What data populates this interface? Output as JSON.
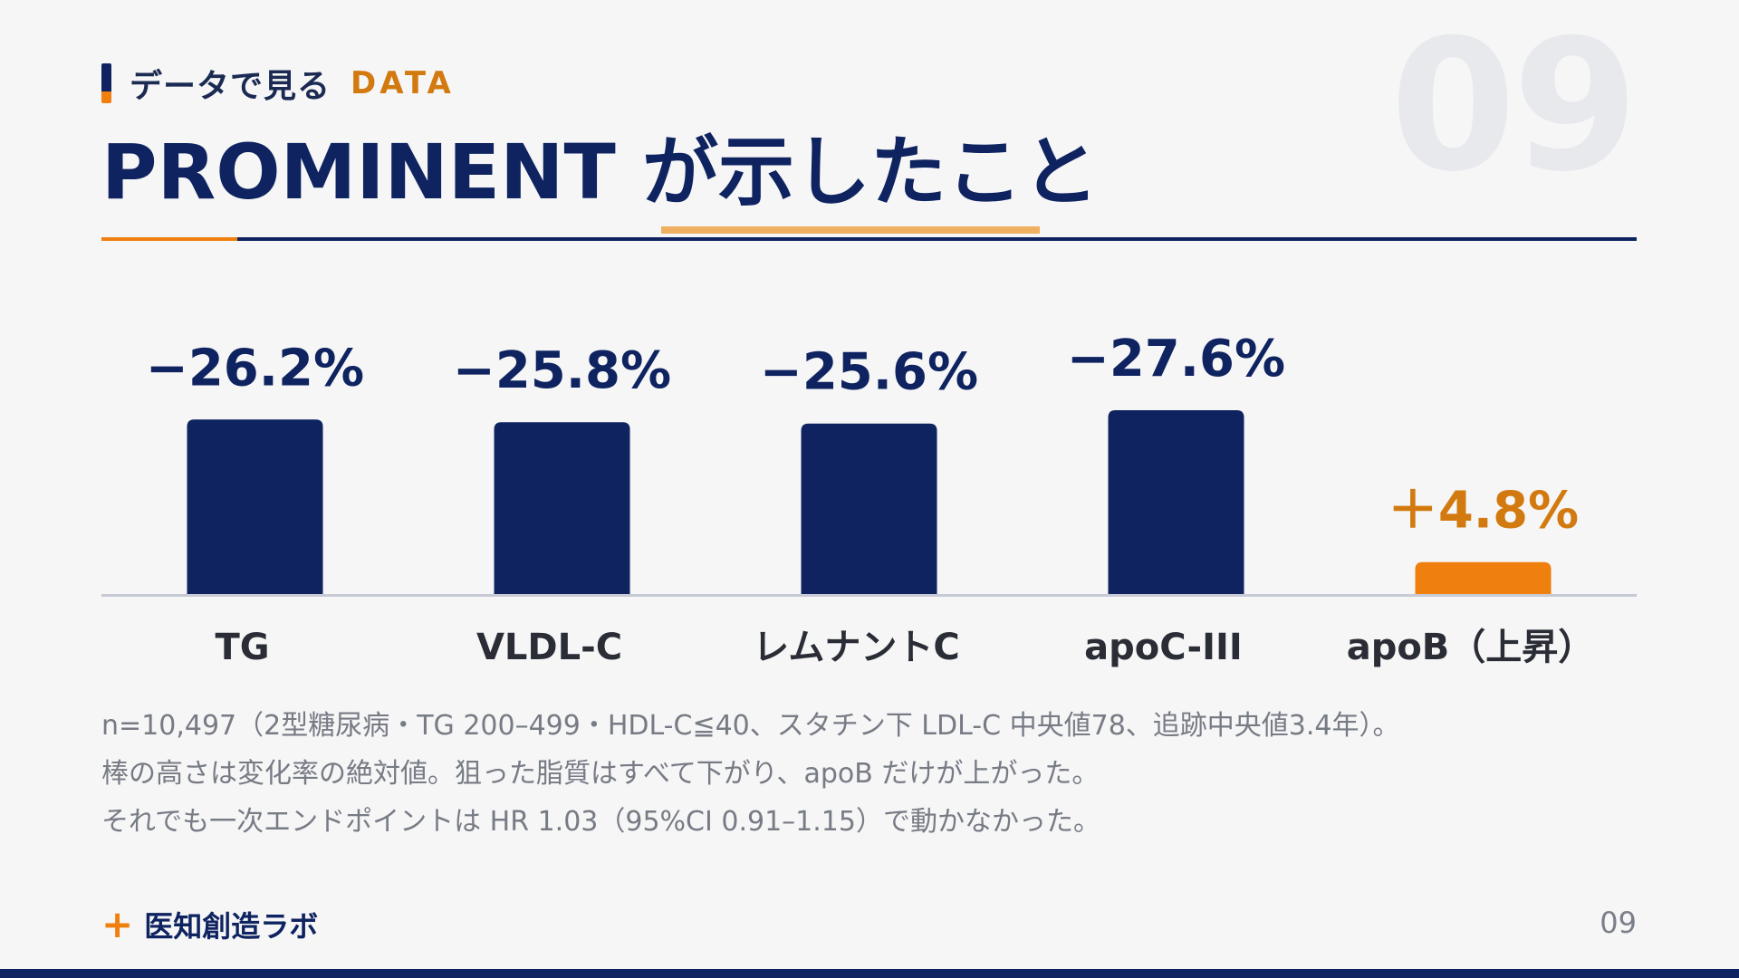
{
  "section": {
    "jp": "データで見る",
    "en": "DATA"
  },
  "big_number": "09",
  "title": "PROMINENT が示したこと",
  "chart_data": {
    "type": "bar",
    "categories": [
      "TG",
      "VLDL-C",
      "レムナントC",
      "apoC-III",
      "apoB（上昇）"
    ],
    "values": [
      -26.2,
      -25.8,
      -25.6,
      -27.6,
      4.8
    ],
    "data_labels": [
      "−26.2%",
      "−25.8%",
      "−25.6%",
      "−27.6%",
      "＋4.8%"
    ],
    "encoding": "bar height = absolute value of change",
    "ylim": [
      0,
      30
    ],
    "grid": false,
    "colors": {
      "decrease": "#0e2360",
      "increase": "#ef7f0e",
      "baseline": "#c8cbd6"
    }
  },
  "notes": [
    "n=10,497（2型糖尿病・TG 200–499・HDL-C≦40、スタチン下 LDL-C 中央値78、追跡中央値3.4年）。",
    "棒の高さは変化率の絶対値。狙った脂質はすべて下がり、apoB だけが上がった。",
    "それでも一次エンドポイントは HR 1.03（95%CI 0.91–1.15）で動かなかった。"
  ],
  "footer": {
    "brand_name": "医知創造ラボ",
    "page_number": "09"
  }
}
